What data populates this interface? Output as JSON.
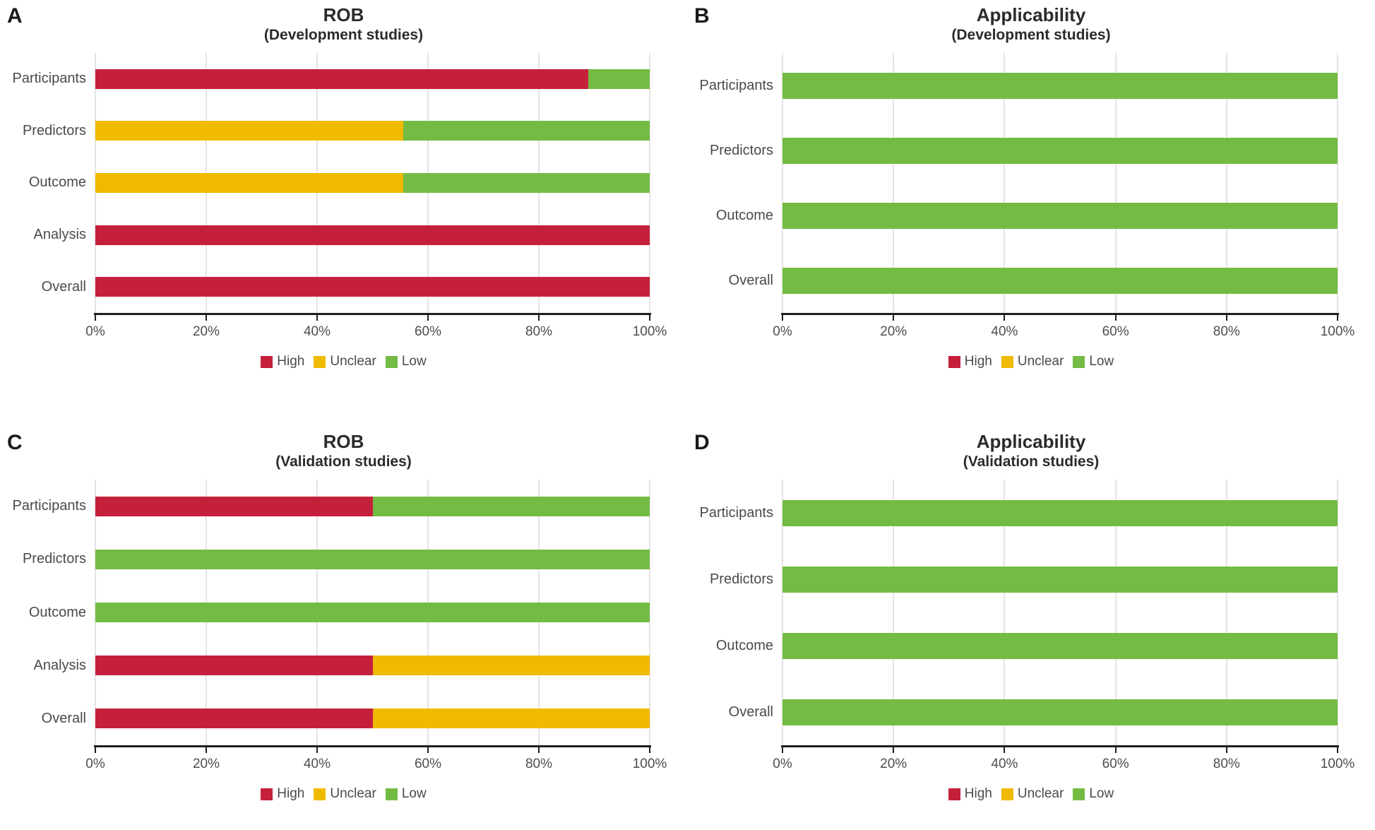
{
  "chart_data": {
    "type": "bar",
    "orientation": "horizontal",
    "stacked": true,
    "unit": "percent",
    "x_axis": {
      "range": [
        0,
        100
      ],
      "tick_labels": [
        "0%",
        "20%",
        "40%",
        "60%",
        "80%",
        "100%"
      ],
      "tick_values": [
        0,
        20,
        40,
        60,
        80,
        100
      ],
      "grid": true
    },
    "legend": {
      "position": "bottom",
      "entries": [
        {
          "key": "high",
          "label": "High",
          "color": "#c5203b"
        },
        {
          "key": "unclear",
          "label": "Unclear",
          "color": "#f0ba00"
        },
        {
          "key": "low",
          "label": "Low",
          "color": "#74bb44"
        }
      ]
    },
    "panels": [
      {
        "letter": "A",
        "title": "ROB",
        "subtitle": "(Development studies)",
        "rows": [
          {
            "category": "Participants",
            "segments": [
              {
                "key": "high",
                "value": 88.9
              },
              {
                "key": "low",
                "value": 11.1
              }
            ]
          },
          {
            "category": "Predictors",
            "segments": [
              {
                "key": "unclear",
                "value": 55.6
              },
              {
                "key": "low",
                "value": 44.4
              }
            ]
          },
          {
            "category": "Outcome",
            "segments": [
              {
                "key": "unclear",
                "value": 55.6
              },
              {
                "key": "low",
                "value": 44.4
              }
            ]
          },
          {
            "category": "Analysis",
            "segments": [
              {
                "key": "high",
                "value": 100
              }
            ]
          },
          {
            "category": "Overall",
            "segments": [
              {
                "key": "high",
                "value": 100
              }
            ]
          }
        ]
      },
      {
        "letter": "B",
        "title": "Applicability",
        "subtitle": "(Development studies)",
        "rows": [
          {
            "category": "Participants",
            "segments": [
              {
                "key": "low",
                "value": 100
              }
            ]
          },
          {
            "category": "Predictors",
            "segments": [
              {
                "key": "low",
                "value": 100
              }
            ]
          },
          {
            "category": "Outcome",
            "segments": [
              {
                "key": "low",
                "value": 100
              }
            ]
          },
          {
            "category": "Overall",
            "segments": [
              {
                "key": "low",
                "value": 100
              }
            ]
          }
        ]
      },
      {
        "letter": "C",
        "title": "ROB",
        "subtitle": "(Validation studies)",
        "rows": [
          {
            "category": "Participants",
            "segments": [
              {
                "key": "high",
                "value": 50
              },
              {
                "key": "low",
                "value": 50
              }
            ]
          },
          {
            "category": "Predictors",
            "segments": [
              {
                "key": "low",
                "value": 100
              }
            ]
          },
          {
            "category": "Outcome",
            "segments": [
              {
                "key": "low",
                "value": 100
              }
            ]
          },
          {
            "category": "Analysis",
            "segments": [
              {
                "key": "high",
                "value": 50
              },
              {
                "key": "unclear",
                "value": 50
              }
            ]
          },
          {
            "category": "Overall",
            "segments": [
              {
                "key": "high",
                "value": 50
              },
              {
                "key": "unclear",
                "value": 50
              }
            ]
          }
        ]
      },
      {
        "letter": "D",
        "title": "Applicability",
        "subtitle": "(Validation studies)",
        "rows": [
          {
            "category": "Participants",
            "segments": [
              {
                "key": "low",
                "value": 100
              }
            ]
          },
          {
            "category": "Predictors",
            "segments": [
              {
                "key": "low",
                "value": 100
              }
            ]
          },
          {
            "category": "Outcome",
            "segments": [
              {
                "key": "low",
                "value": 100
              }
            ]
          },
          {
            "category": "Overall",
            "segments": [
              {
                "key": "low",
                "value": 100
              }
            ]
          }
        ]
      }
    ]
  }
}
